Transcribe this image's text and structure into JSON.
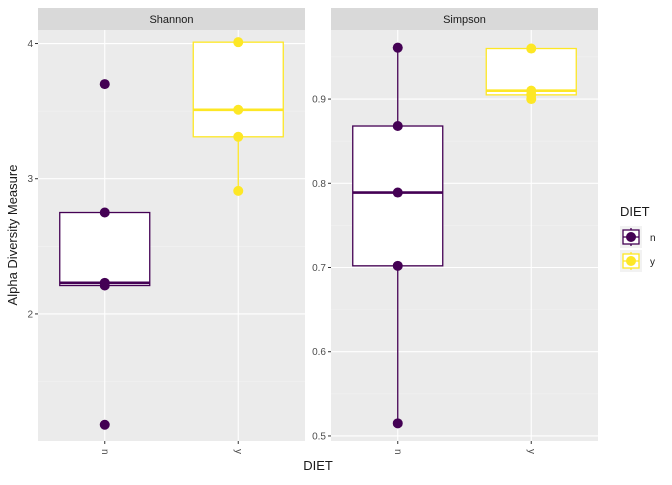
{
  "chart_data": [
    {
      "type": "boxplot",
      "facet": "Shannon",
      "xlabel": "DIET",
      "ylabel": "Alpha Diversity Measure",
      "categories": [
        "n",
        "y"
      ],
      "y_ticks": [
        2,
        3,
        4
      ],
      "y_tick_labels": [
        "2",
        "3",
        "4"
      ],
      "ylim": [
        1.06,
        4.1
      ],
      "grid": true,
      "series": [
        {
          "name": "n",
          "color": "#440154",
          "points": [
            3.7,
            2.75,
            2.23,
            2.21,
            1.18
          ],
          "box": {
            "q1": 2.21,
            "median": 2.23,
            "q3": 2.75
          },
          "errorbar": [
            2.21,
            2.75
          ]
        },
        {
          "name": "y",
          "color": "#FDE725",
          "points": [
            4.01,
            3.51,
            3.31,
            2.91
          ],
          "box": {
            "q1": 3.31,
            "median": 3.51,
            "q3": 4.01
          },
          "errorbar": [
            2.91,
            4.01
          ]
        }
      ]
    },
    {
      "type": "boxplot",
      "facet": "Simpson",
      "xlabel": "DIET",
      "ylabel": "Alpha Diversity Measure",
      "categories": [
        "n",
        "y"
      ],
      "y_ticks": [
        0.5,
        0.6,
        0.7,
        0.8,
        0.9
      ],
      "y_tick_labels": [
        "0.5",
        "0.6",
        "0.7",
        "0.8",
        "0.9"
      ],
      "ylim": [
        0.494,
        0.982
      ],
      "grid": true,
      "series": [
        {
          "name": "n",
          "color": "#440154",
          "points": [
            0.961,
            0.868,
            0.789,
            0.702,
            0.515
          ],
          "box": {
            "q1": 0.702,
            "median": 0.789,
            "q3": 0.868
          },
          "errorbar": [
            0.515,
            0.961
          ]
        },
        {
          "name": "y",
          "color": "#FDE725",
          "points": [
            0.96,
            0.91,
            0.905,
            0.9
          ],
          "box": {
            "q1": 0.905,
            "median": 0.91,
            "q3": 0.96
          },
          "errorbar": [
            0.9,
            0.96
          ]
        }
      ]
    }
  ],
  "legend": {
    "title": "DIET",
    "position": "right",
    "entries": [
      {
        "label": "n",
        "color": "#440154"
      },
      {
        "label": "y",
        "color": "#FDE725"
      }
    ]
  },
  "colors": {
    "panel_bg": "#EBEBEB",
    "strip_bg": "#D9D9D9",
    "grid_major": "#FFFFFF",
    "grid_minor": "#F2F2F2"
  }
}
